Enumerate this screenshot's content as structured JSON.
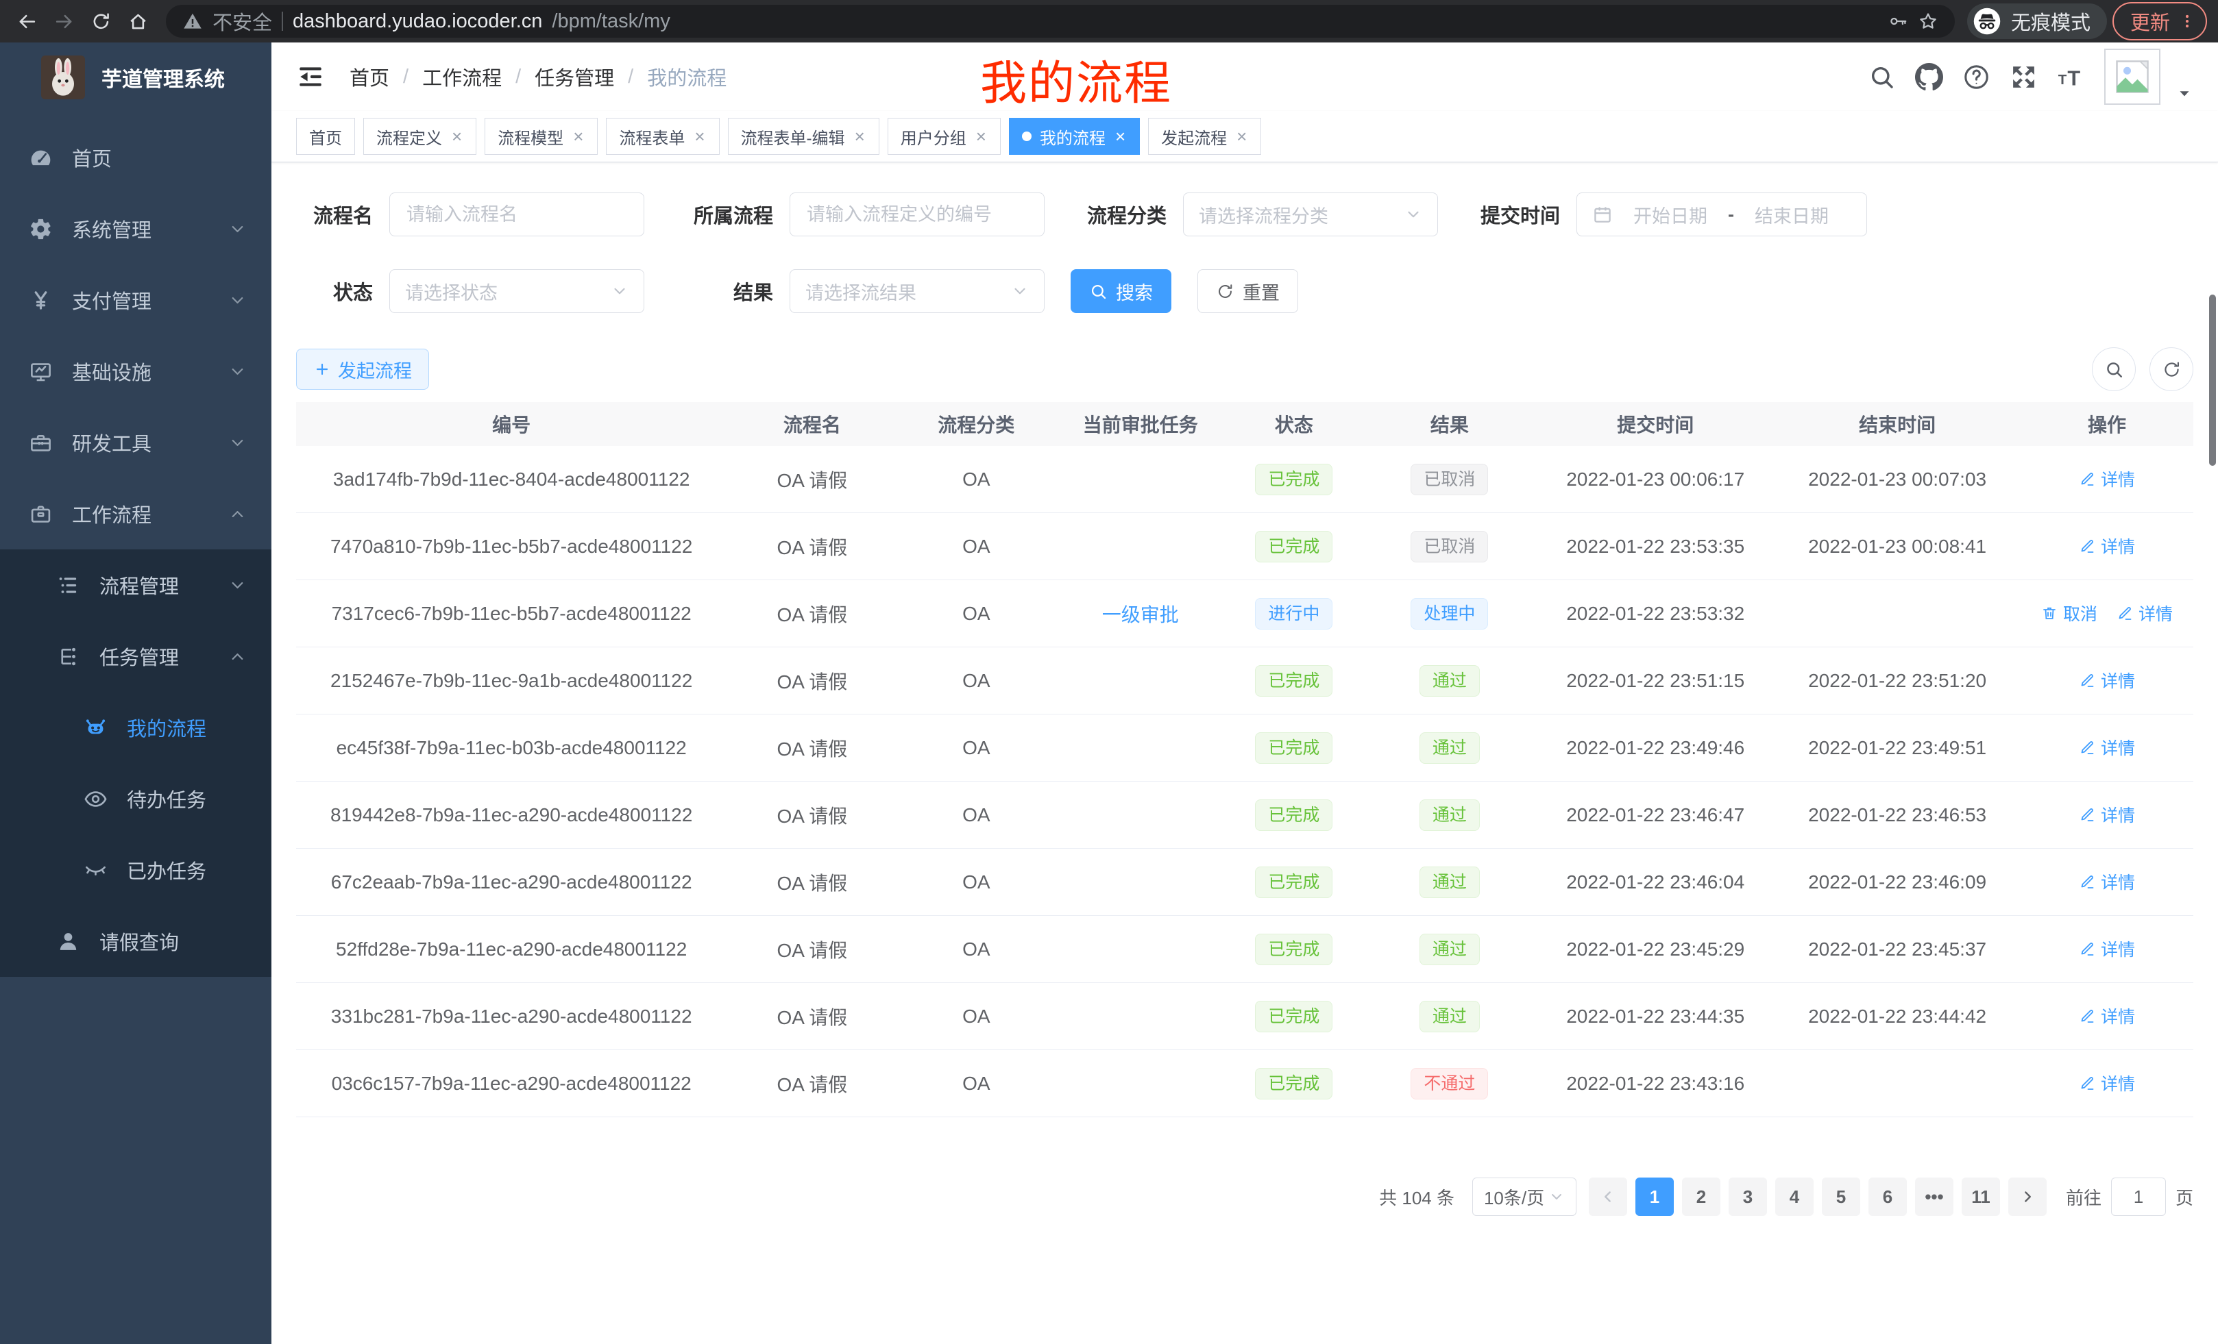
{
  "browser": {
    "security_label": "不安全",
    "url_domain": "dashboard.yudao.iocoder.cn",
    "url_path": "/bpm/task/my",
    "incognito_label": "无痕模式",
    "update_label": "更新"
  },
  "sidebar": {
    "app_title": "芋道管理系统",
    "menu": [
      {
        "label": "首页",
        "icon": "dashboard",
        "level": 1,
        "dark": false,
        "chevron": "",
        "active": false
      },
      {
        "label": "系统管理",
        "icon": "gear",
        "level": 1,
        "dark": false,
        "chevron": "down",
        "active": false
      },
      {
        "label": "支付管理",
        "icon": "yen",
        "level": 1,
        "dark": false,
        "chevron": "down",
        "active": false
      },
      {
        "label": "基础设施",
        "icon": "monitor",
        "level": 1,
        "dark": false,
        "chevron": "down",
        "active": false
      },
      {
        "label": "研发工具",
        "icon": "toolbox",
        "level": 1,
        "dark": false,
        "chevron": "down",
        "active": false
      },
      {
        "label": "工作流程",
        "icon": "briefcase",
        "level": 1,
        "dark": false,
        "chevron": "up",
        "active": false
      },
      {
        "label": "流程管理",
        "icon": "list",
        "level": 2,
        "dark": true,
        "chevron": "down",
        "active": false
      },
      {
        "label": "任务管理",
        "icon": "tree",
        "level": 2,
        "dark": true,
        "chevron": "up",
        "active": false
      },
      {
        "label": "我的流程",
        "icon": "robot",
        "level": 3,
        "dark": true,
        "chevron": "",
        "active": true
      },
      {
        "label": "待办任务",
        "icon": "eye",
        "level": 3,
        "dark": true,
        "chevron": "",
        "active": false
      },
      {
        "label": "已办任务",
        "icon": "eye-closed",
        "level": 3,
        "dark": true,
        "chevron": "",
        "active": false
      },
      {
        "label": "请假查询",
        "icon": "user",
        "level": 2,
        "dark": true,
        "chevron": "",
        "active": false
      }
    ]
  },
  "header": {
    "breadcrumb": [
      "首页",
      "工作流程",
      "任务管理",
      "我的流程"
    ],
    "annotation": "我的流程"
  },
  "tabs": [
    {
      "label": "首页",
      "closable": false,
      "active": false
    },
    {
      "label": "流程定义",
      "closable": true,
      "active": false
    },
    {
      "label": "流程模型",
      "closable": true,
      "active": false
    },
    {
      "label": "流程表单",
      "closable": true,
      "active": false
    },
    {
      "label": "流程表单-编辑",
      "closable": true,
      "active": false
    },
    {
      "label": "用户分组",
      "closable": true,
      "active": false
    },
    {
      "label": "我的流程",
      "closable": true,
      "active": true
    },
    {
      "label": "发起流程",
      "closable": true,
      "active": false
    }
  ],
  "filters": {
    "name_label": "流程名",
    "name_placeholder": "请输入流程名",
    "def_label": "所属流程",
    "def_placeholder": "请输入流程定义的编号",
    "category_label": "流程分类",
    "category_placeholder": "请选择流程分类",
    "time_label": "提交时间",
    "start_placeholder": "开始日期",
    "range_separator": "-",
    "end_placeholder": "结束日期",
    "status_label": "状态",
    "status_placeholder": "请选择状态",
    "result_label": "结果",
    "result_placeholder": "请选择流结果",
    "search_label": "搜索",
    "reset_label": "重置"
  },
  "toolbar": {
    "create_label": "发起流程"
  },
  "table": {
    "columns": [
      "编号",
      "流程名",
      "流程分类",
      "当前审批任务",
      "状态",
      "结果",
      "提交时间",
      "结束时间",
      "操作"
    ],
    "rows": [
      {
        "id": "3ad174fb-7b9d-11ec-8404-acde48001122",
        "name": "OA 请假",
        "category": "OA",
        "task": "",
        "status": {
          "text": "已完成",
          "type": "success"
        },
        "result": {
          "text": "已取消",
          "type": "info"
        },
        "submit": "2022-01-23 00:06:17",
        "end": "2022-01-23 00:07:03",
        "actions": [
          {
            "label": "详情",
            "icon": "edit"
          }
        ]
      },
      {
        "id": "7470a810-7b9b-11ec-b5b7-acde48001122",
        "name": "OA 请假",
        "category": "OA",
        "task": "",
        "status": {
          "text": "已完成",
          "type": "success"
        },
        "result": {
          "text": "已取消",
          "type": "info"
        },
        "submit": "2022-01-22 23:53:35",
        "end": "2022-01-23 00:08:41",
        "actions": [
          {
            "label": "详情",
            "icon": "edit"
          }
        ]
      },
      {
        "id": "7317cec6-7b9b-11ec-b5b7-acde48001122",
        "name": "OA 请假",
        "category": "OA",
        "task": "一级审批",
        "status": {
          "text": "进行中",
          "type": "primary"
        },
        "result": {
          "text": "处理中",
          "type": "primary"
        },
        "submit": "2022-01-22 23:53:32",
        "end": "",
        "actions": [
          {
            "label": "取消",
            "icon": "trash"
          },
          {
            "label": "详情",
            "icon": "edit"
          }
        ]
      },
      {
        "id": "2152467e-7b9b-11ec-9a1b-acde48001122",
        "name": "OA 请假",
        "category": "OA",
        "task": "",
        "status": {
          "text": "已完成",
          "type": "success"
        },
        "result": {
          "text": "通过",
          "type": "success"
        },
        "submit": "2022-01-22 23:51:15",
        "end": "2022-01-22 23:51:20",
        "actions": [
          {
            "label": "详情",
            "icon": "edit"
          }
        ]
      },
      {
        "id": "ec45f38f-7b9a-11ec-b03b-acde48001122",
        "name": "OA 请假",
        "category": "OA",
        "task": "",
        "status": {
          "text": "已完成",
          "type": "success"
        },
        "result": {
          "text": "通过",
          "type": "success"
        },
        "submit": "2022-01-22 23:49:46",
        "end": "2022-01-22 23:49:51",
        "actions": [
          {
            "label": "详情",
            "icon": "edit"
          }
        ]
      },
      {
        "id": "819442e8-7b9a-11ec-a290-acde48001122",
        "name": "OA 请假",
        "category": "OA",
        "task": "",
        "status": {
          "text": "已完成",
          "type": "success"
        },
        "result": {
          "text": "通过",
          "type": "success"
        },
        "submit": "2022-01-22 23:46:47",
        "end": "2022-01-22 23:46:53",
        "actions": [
          {
            "label": "详情",
            "icon": "edit"
          }
        ]
      },
      {
        "id": "67c2eaab-7b9a-11ec-a290-acde48001122",
        "name": "OA 请假",
        "category": "OA",
        "task": "",
        "status": {
          "text": "已完成",
          "type": "success"
        },
        "result": {
          "text": "通过",
          "type": "success"
        },
        "submit": "2022-01-22 23:46:04",
        "end": "2022-01-22 23:46:09",
        "actions": [
          {
            "label": "详情",
            "icon": "edit"
          }
        ]
      },
      {
        "id": "52ffd28e-7b9a-11ec-a290-acde48001122",
        "name": "OA 请假",
        "category": "OA",
        "task": "",
        "status": {
          "text": "已完成",
          "type": "success"
        },
        "result": {
          "text": "通过",
          "type": "success"
        },
        "submit": "2022-01-22 23:45:29",
        "end": "2022-01-22 23:45:37",
        "actions": [
          {
            "label": "详情",
            "icon": "edit"
          }
        ]
      },
      {
        "id": "331bc281-7b9a-11ec-a290-acde48001122",
        "name": "OA 请假",
        "category": "OA",
        "task": "",
        "status": {
          "text": "已完成",
          "type": "success"
        },
        "result": {
          "text": "通过",
          "type": "success"
        },
        "submit": "2022-01-22 23:44:35",
        "end": "2022-01-22 23:44:42",
        "actions": [
          {
            "label": "详情",
            "icon": "edit"
          }
        ]
      },
      {
        "id": "03c6c157-7b9a-11ec-a290-acde48001122",
        "name": "OA 请假",
        "category": "OA",
        "task": "",
        "status": {
          "text": "已完成",
          "type": "success"
        },
        "result": {
          "text": "不通过",
          "type": "danger"
        },
        "submit": "2022-01-22 23:43:16",
        "end": "",
        "actions": [
          {
            "label": "详情",
            "icon": "edit"
          }
        ]
      }
    ]
  },
  "pagination": {
    "total_label": "共 104 条",
    "page_size": "10条/页",
    "pages": [
      "1",
      "2",
      "3",
      "4",
      "5",
      "6",
      "•••",
      "11"
    ],
    "active_page": "1",
    "goto_label": "前往",
    "goto_value": "1",
    "goto_suffix": "页"
  },
  "colors": {
    "accent": "#409eff",
    "success": "#67c23a",
    "danger": "#f56c6c",
    "info": "#909399",
    "annotation_red": "#fe2c00",
    "sidebar_bg": "#304156",
    "submenu_bg": "#1f2d3d",
    "active_tab_bg": "#409eff"
  }
}
